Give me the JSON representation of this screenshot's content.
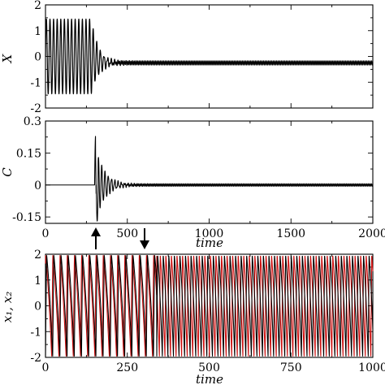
{
  "chart_data": [
    {
      "type": "line",
      "panel": "top",
      "ylabel": "X",
      "xlabel": "",
      "xlim": [
        0,
        2000
      ],
      "ylim": [
        -2,
        2
      ],
      "x_ticks": [
        "0",
        "500",
        "1000",
        "1500",
        "2000"
      ],
      "x_tick_values": [
        0,
        500,
        1000,
        1500,
        2000
      ],
      "y_ticks": [
        "2",
        "1",
        "0",
        "-1",
        "-2"
      ],
      "y_tick_values": [
        2,
        1,
        0,
        -1,
        -2
      ],
      "show_x_tick_labels": false,
      "grid": false,
      "series": [
        {
          "color": "#000000",
          "description_values": {
            "initial_amplitude": 1.45,
            "transition_start": 300,
            "settled_offset": -0.25,
            "settled_amplitude": 0.08
          }
        }
      ]
    },
    {
      "type": "line",
      "panel": "middle",
      "ylabel": "C",
      "xlabel": "time",
      "xlim": [
        0,
        2000
      ],
      "ylim": [
        -0.18,
        0.3
      ],
      "x_ticks": [
        "0",
        "500",
        "1000",
        "1500",
        "2000"
      ],
      "x_tick_values": [
        0,
        500,
        1000,
        1500,
        2000
      ],
      "y_ticks": [
        "0.3",
        "0.15",
        "0",
        "-0.15"
      ],
      "y_tick_values": [
        0.3,
        0.15,
        0,
        -0.15
      ],
      "show_x_tick_labels": true,
      "grid": false,
      "series": [
        {
          "color": "#000000",
          "description_values": {
            "spike_time": 300,
            "spike_max": 0.23,
            "spike_min": -0.17,
            "baseline": 0
          }
        }
      ],
      "annotations": [
        {
          "type": "arrow-up",
          "x": 300
        },
        {
          "type": "arrow-down",
          "x": 600
        }
      ]
    },
    {
      "type": "line",
      "panel": "bottom",
      "ylabel": "x_1, x_2",
      "xlabel": "time",
      "xlim": [
        0,
        1000
      ],
      "ylim": [
        -2,
        2
      ],
      "x_ticks": [
        "0",
        "250",
        "500",
        "750",
        "1000"
      ],
      "x_tick_values": [
        0,
        250,
        500,
        750,
        1000
      ],
      "y_ticks": [
        "2",
        "1",
        "0",
        "-1",
        "-2"
      ],
      "y_tick_values": [
        2,
        1,
        0,
        -1,
        -2
      ],
      "show_x_tick_labels": true,
      "grid": false,
      "series": [
        {
          "name": "x_1",
          "color": "#000000"
        },
        {
          "name": "x_2",
          "color": "#cc1111"
        }
      ]
    }
  ],
  "labels": {
    "top_ylabel": "X",
    "mid_ylabel": "C",
    "mid_xlabel": "time",
    "bot_ylabel": "x₁, x₂",
    "bot_xlabel": "time"
  }
}
